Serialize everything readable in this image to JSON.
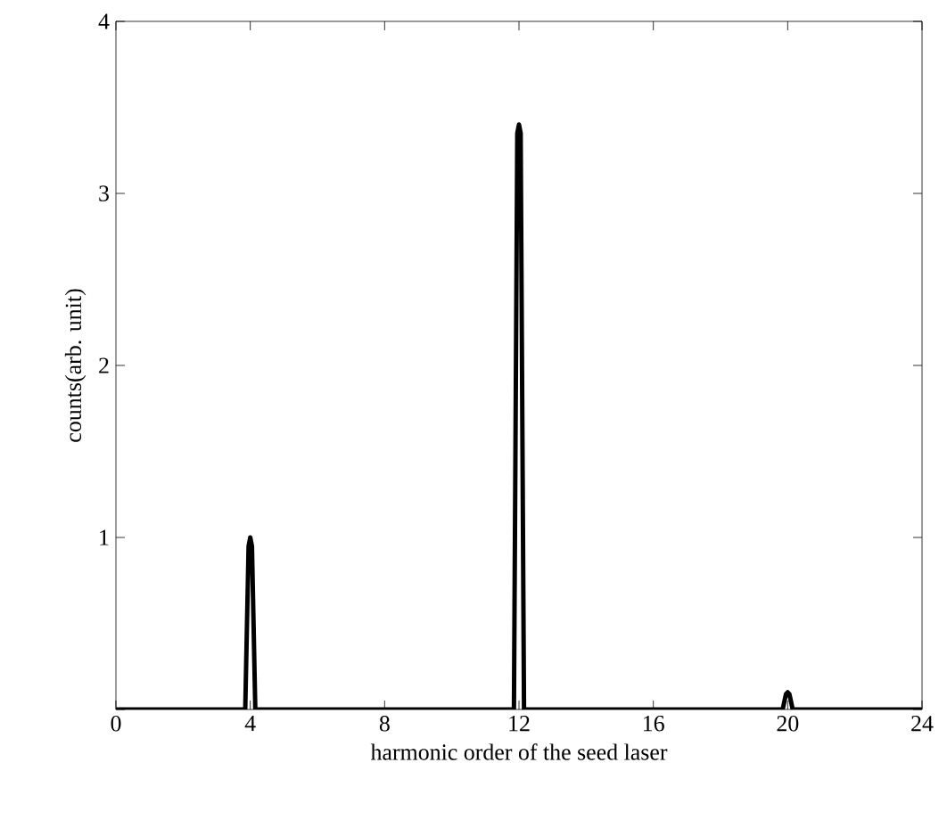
{
  "chart_data": {
    "type": "line",
    "xlabel": "harmonic order of the seed laser",
    "ylabel": "counts(arb. unit)",
    "xlim": [
      0,
      24
    ],
    "ylim": [
      0,
      4
    ],
    "xticks": [
      0,
      4,
      8,
      12,
      16,
      20,
      24
    ],
    "yticks": [
      {
        "value": 0,
        "label": null
      },
      1,
      2,
      3,
      4
    ],
    "marker": "none",
    "line_style": "solid",
    "series": [
      {
        "color": "#000000",
        "x": [
          0,
          3.85,
          3.95,
          4.0,
          4.05,
          4.15,
          11.85,
          11.95,
          12.0,
          12.05,
          12.15,
          19.85,
          19.95,
          20.0,
          20.05,
          20.15,
          24
        ],
        "values": [
          0,
          0,
          0.95,
          1.0,
          0.95,
          0,
          0,
          3.35,
          3.4,
          3.35,
          0,
          0,
          0.09,
          0.1,
          0.09,
          0,
          0
        ]
      }
    ]
  }
}
